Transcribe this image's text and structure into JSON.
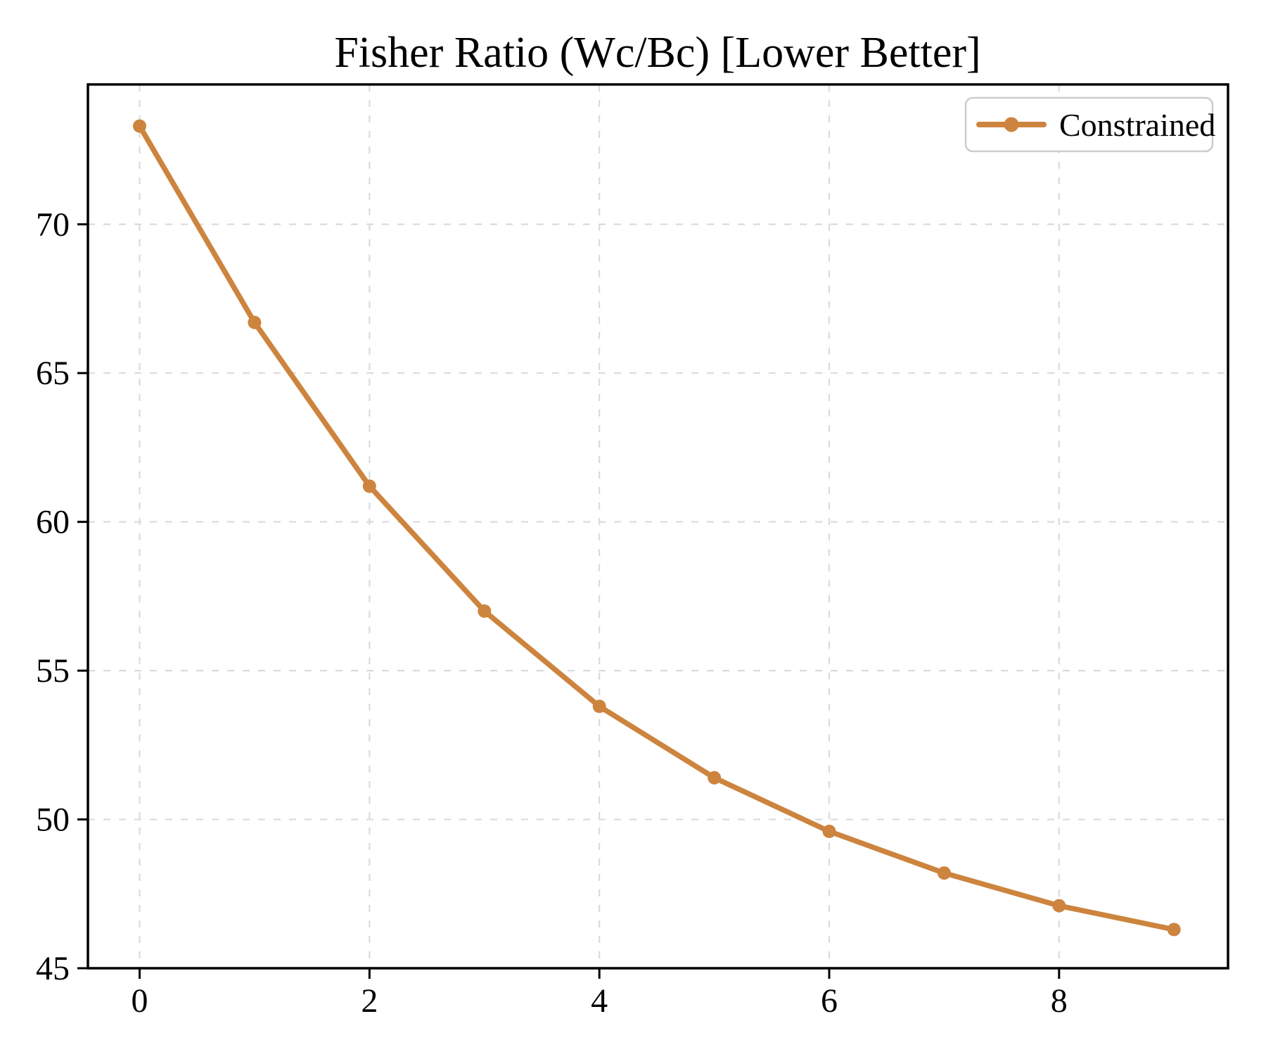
{
  "title": "Fisher Ratio (Wc/Bc) [Lower Better]",
  "legend": {
    "label": "Constrained"
  },
  "colors": {
    "line": "#CD843E",
    "grid": "#DBDBDB",
    "spine": "#000000",
    "legend_border": "#CCCCCC",
    "background": "#FFFFFF"
  },
  "chart_data": {
    "type": "line",
    "title": "Fisher Ratio (Wc/Bc) [Lower Better]",
    "x": [
      0,
      1,
      2,
      3,
      4,
      5,
      6,
      7,
      8,
      9
    ],
    "series": [
      {
        "name": "Constrained",
        "values": [
          73.3,
          66.7,
          61.2,
          57.0,
          53.8,
          51.4,
          49.6,
          48.2,
          47.1,
          46.3
        ],
        "color": "#CD843E",
        "marker": "circle"
      }
    ],
    "xlabel": "",
    "ylabel": "",
    "xlim": [
      -0.45,
      9.47
    ],
    "ylim": [
      45,
      74.7
    ],
    "x_ticks": [
      0,
      2,
      4,
      6,
      8
    ],
    "y_ticks": [
      45,
      50,
      55,
      60,
      65,
      70
    ],
    "grid": true,
    "grid_style": "dashed",
    "legend_position": "upper right"
  }
}
